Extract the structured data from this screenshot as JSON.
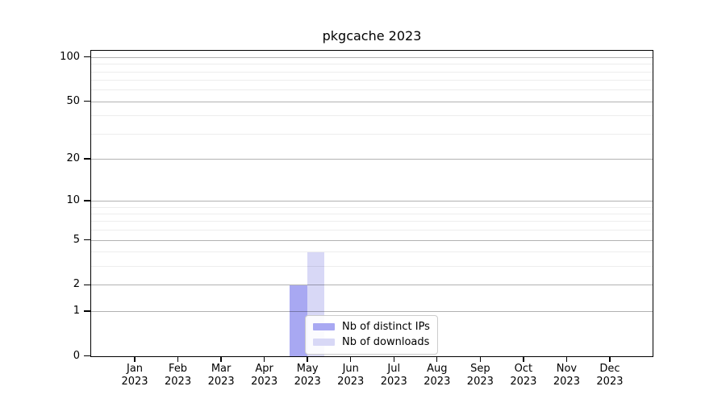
{
  "chart_data": {
    "type": "bar",
    "title": "pkgcache 2023",
    "x_tick_months": [
      "Jan",
      "Feb",
      "Mar",
      "Apr",
      "May",
      "Jun",
      "Jul",
      "Aug",
      "Sep",
      "Oct",
      "Nov",
      "Dec"
    ],
    "x_tick_year": "2023",
    "series": [
      {
        "name": "Nb of distinct IPs",
        "color": "#a8a8f2",
        "values": [
          0,
          0,
          0,
          0,
          2,
          0,
          0,
          0,
          0,
          0,
          0,
          0
        ]
      },
      {
        "name": "Nb of downloads",
        "color": "#d8d8f6",
        "values": [
          0,
          0,
          0,
          0,
          4,
          0,
          0,
          0,
          0,
          0,
          0,
          0
        ]
      }
    ],
    "yscale": "log1p",
    "ylim": [
      0,
      111
    ],
    "y_major_ticks": [
      0,
      1,
      2,
      5,
      10,
      20,
      50,
      100
    ],
    "y_minor_gridlines": [
      3,
      4,
      6,
      7,
      8,
      9,
      30,
      40,
      60,
      70,
      80,
      90
    ],
    "grid": true,
    "legend": {
      "location": "lower-center-inside"
    },
    "colors": {
      "major_grid": "rgba(0,0,0,0.30)",
      "minor_grid": "rgba(0,0,0,0.07)",
      "axis": "#000000",
      "background": "#ffffff"
    }
  }
}
